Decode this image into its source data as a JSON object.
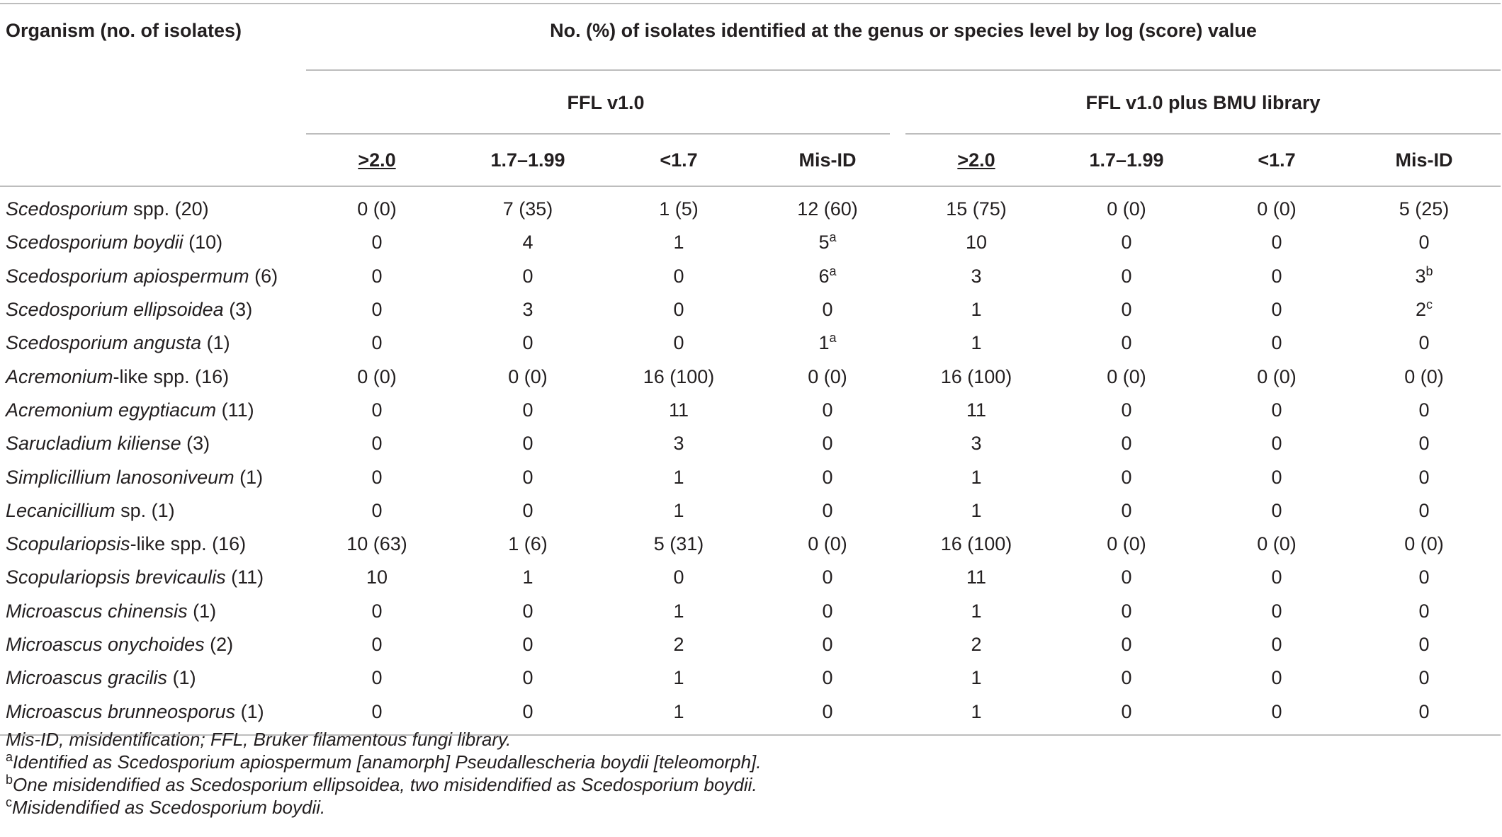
{
  "table": {
    "header": {
      "organism_col": "Organism (no. of isolates)",
      "span_title": "No. (%) of isolates identified at the genus or species level by log (score) value",
      "group1": "FFL v1.0",
      "group2": "FFL v1.0 plus BMU library",
      "subcols": [
        ">2.0",
        "1.7–1.99",
        "<1.7",
        "Mis-ID",
        ">2.0",
        "1.7–1.99",
        "<1.7",
        "Mis-ID"
      ]
    },
    "rows": [
      {
        "italic": "Scedosporium",
        "rest": " spp. (20)",
        "cells": [
          "0 (0)",
          "7 (35)",
          "1 (5)",
          "12 (60)",
          "15 (75)",
          "0 (0)",
          "0 (0)",
          "5 (25)"
        ],
        "sups": [
          "",
          "",
          "",
          "",
          "",
          "",
          "",
          ""
        ]
      },
      {
        "italic": "Scedosporium boydii",
        "rest": " (10)",
        "cells": [
          "0",
          "4",
          "1",
          "5",
          "10",
          "0",
          "0",
          "0"
        ],
        "sups": [
          "",
          "",
          "",
          "a",
          "",
          "",
          "",
          ""
        ]
      },
      {
        "italic": "Scedosporium apiospermum",
        "rest": " (6)",
        "cells": [
          "0",
          "0",
          "0",
          "6",
          "3",
          "0",
          "0",
          "3"
        ],
        "sups": [
          "",
          "",
          "",
          "a",
          "",
          "",
          "",
          "b"
        ]
      },
      {
        "italic": "Scedosporium ellipsoidea",
        "rest": " (3)",
        "cells": [
          "0",
          "3",
          "0",
          "0",
          "1",
          "0",
          "0",
          "2"
        ],
        "sups": [
          "",
          "",
          "",
          "",
          "",
          "",
          "",
          "c"
        ]
      },
      {
        "italic": "Scedosporium angusta",
        "rest": " (1)",
        "cells": [
          "0",
          "0",
          "0",
          "1",
          "1",
          "0",
          "0",
          "0"
        ],
        "sups": [
          "",
          "",
          "",
          "a",
          "",
          "",
          "",
          ""
        ]
      },
      {
        "italic": "Acremonium",
        "rest": "-like spp. (16)",
        "cells": [
          "0 (0)",
          "0 (0)",
          "16 (100)",
          "0 (0)",
          "16 (100)",
          "0 (0)",
          "0 (0)",
          "0 (0)"
        ],
        "sups": [
          "",
          "",
          "",
          "",
          "",
          "",
          "",
          ""
        ]
      },
      {
        "italic": "Acremonium egyptiacum",
        "rest": " (11)",
        "cells": [
          "0",
          "0",
          "11",
          "0",
          "11",
          "0",
          "0",
          "0"
        ],
        "sups": [
          "",
          "",
          "",
          "",
          "",
          "",
          "",
          ""
        ]
      },
      {
        "italic": "Sarucladium kiliense",
        "rest": " (3)",
        "cells": [
          "0",
          "0",
          "3",
          "0",
          "3",
          "0",
          "0",
          "0"
        ],
        "sups": [
          "",
          "",
          "",
          "",
          "",
          "",
          "",
          ""
        ]
      },
      {
        "italic": "Simplicillium lanosoniveum",
        "rest": " (1)",
        "cells": [
          "0",
          "0",
          "1",
          "0",
          "1",
          "0",
          "0",
          "0"
        ],
        "sups": [
          "",
          "",
          "",
          "",
          "",
          "",
          "",
          ""
        ]
      },
      {
        "italic": "Lecanicillium",
        "rest": " sp. (1)",
        "cells": [
          "0",
          "0",
          "1",
          "0",
          "1",
          "0",
          "0",
          "0"
        ],
        "sups": [
          "",
          "",
          "",
          "",
          "",
          "",
          "",
          ""
        ]
      },
      {
        "italic": "Scopulariopsis",
        "rest": "-like spp. (16)",
        "cells": [
          "10 (63)",
          "1 (6)",
          "5 (31)",
          "0 (0)",
          "16 (100)",
          "0 (0)",
          "0 (0)",
          "0 (0)"
        ],
        "sups": [
          "",
          "",
          "",
          "",
          "",
          "",
          "",
          ""
        ]
      },
      {
        "italic": "Scopulariopsis brevicaulis",
        "rest": " (11)",
        "cells": [
          "10",
          "1",
          "0",
          "0",
          "11",
          "0",
          "0",
          "0"
        ],
        "sups": [
          "",
          "",
          "",
          "",
          "",
          "",
          "",
          ""
        ]
      },
      {
        "italic": "Microascus chinensis",
        "rest": " (1)",
        "cells": [
          "0",
          "0",
          "1",
          "0",
          "1",
          "0",
          "0",
          "0"
        ],
        "sups": [
          "",
          "",
          "",
          "",
          "",
          "",
          "",
          ""
        ]
      },
      {
        "italic": "Microascus onychoides",
        "rest": " (2)",
        "cells": [
          "0",
          "0",
          "2",
          "0",
          "2",
          "0",
          "0",
          "0"
        ],
        "sups": [
          "",
          "",
          "",
          "",
          "",
          "",
          "",
          ""
        ]
      },
      {
        "italic": "Microascus gracilis",
        "rest": " (1)",
        "cells": [
          "0",
          "0",
          "1",
          "0",
          "1",
          "0",
          "0",
          "0"
        ],
        "sups": [
          "",
          "",
          "",
          "",
          "",
          "",
          "",
          ""
        ]
      },
      {
        "italic": "Microascus brunneosporus",
        "rest": " (1)",
        "cells": [
          "0",
          "0",
          "1",
          "0",
          "1",
          "0",
          "0",
          "0"
        ],
        "sups": [
          "",
          "",
          "",
          "",
          "",
          "",
          "",
          ""
        ]
      }
    ]
  },
  "footnotes": {
    "abbrev": "Mis-ID, misidentification; FFL, Bruker filamentous fungi library.",
    "notes": [
      {
        "mark": "a",
        "text": "Identified as Scedosporium apiospermum [anamorph] Pseudallescheria boydii [teleomorph]."
      },
      {
        "mark": "b",
        "text": "One misidendified as Scedosporium ellipsoidea, two misidendified as Scedosporium boydii."
      },
      {
        "mark": "c",
        "text": "Misidendified as Scedosporium boydii."
      }
    ]
  }
}
